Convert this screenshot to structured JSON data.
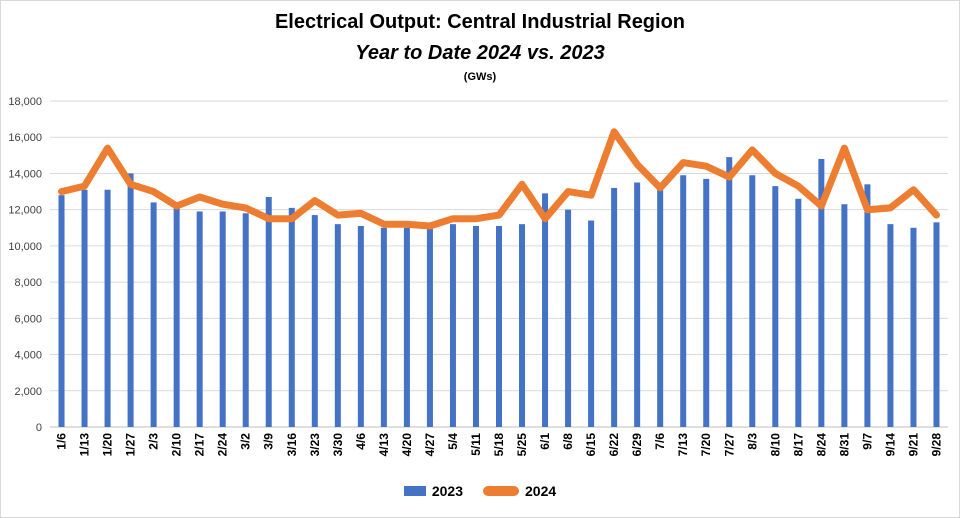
{
  "chart_data": {
    "type": "bar",
    "title": "Electrical Output:  Central Industrial Region",
    "subtitle": "Year to Date 2024 vs. 2023",
    "units": "(GWs)",
    "ylim": [
      0,
      18000
    ],
    "yticks": [
      "0",
      "2,000",
      "4,000",
      "6,000",
      "8,000",
      "10,000",
      "12,000",
      "14,000",
      "16,000",
      "18,000"
    ],
    "grid": true,
    "legend_position": "bottom",
    "categories": [
      "1/6",
      "1/13",
      "1/20",
      "1/27",
      "2/3",
      "2/10",
      "2/17",
      "2/24",
      "3/2",
      "3/9",
      "3/16",
      "3/23",
      "3/30",
      "4/6",
      "4/13",
      "4/20",
      "4/27",
      "5/4",
      "5/11",
      "5/18",
      "5/25",
      "6/1",
      "6/8",
      "6/15",
      "6/22",
      "6/29",
      "7/6",
      "7/13",
      "7/20",
      "7/27",
      "8/3",
      "8/10",
      "8/17",
      "8/24",
      "8/31",
      "9/7",
      "9/14",
      "9/21",
      "9/28"
    ],
    "series": [
      {
        "name": "2023",
        "kind": "bar",
        "color": "#4472c4",
        "values": [
          12800,
          13100,
          13100,
          14000,
          12400,
          12100,
          11900,
          11900,
          11800,
          12700,
          12100,
          11700,
          11200,
          11100,
          11000,
          11000,
          11000,
          11200,
          11100,
          11100,
          11200,
          12900,
          12000,
          11400,
          13200,
          13500,
          13100,
          13900,
          13700,
          14900,
          13900,
          13300,
          12600,
          14800,
          12300,
          13400,
          11200,
          11000,
          11300
        ]
      },
      {
        "name": "2024",
        "kind": "line",
        "color": "#ed7d31",
        "values": [
          13000,
          13300,
          15400,
          13400,
          13000,
          12200,
          12700,
          12300,
          12100,
          11500,
          11500,
          12500,
          11700,
          11800,
          11200,
          11200,
          11100,
          11500,
          11500,
          11700,
          13400,
          11500,
          13000,
          12800,
          16300,
          14500,
          13200,
          14600,
          14400,
          13800,
          15300,
          14000,
          13300,
          12200,
          15400,
          12000,
          12100,
          13100,
          11700
        ]
      }
    ]
  }
}
